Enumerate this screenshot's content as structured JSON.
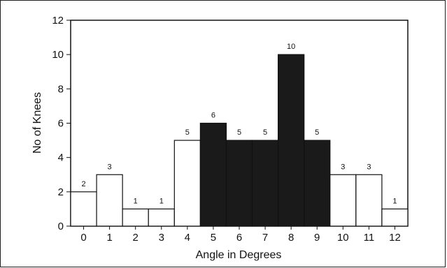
{
  "chart_data": {
    "type": "bar",
    "xlabel": "Angle in Degrees",
    "ylabel": "No of Knees",
    "categories": [
      "0",
      "1",
      "2",
      "3",
      "4",
      "5",
      "6",
      "7",
      "8",
      "9",
      "10",
      "11",
      "12"
    ],
    "values": [
      2,
      3,
      1,
      1,
      5,
      6,
      5,
      5,
      10,
      5,
      3,
      3,
      1
    ],
    "highlighted": [
      false,
      false,
      false,
      false,
      false,
      true,
      true,
      true,
      true,
      true,
      false,
      false,
      false
    ],
    "ylim": [
      0,
      12
    ],
    "yticks": [
      "0",
      "2",
      "4",
      "6",
      "8",
      "10",
      "12"
    ],
    "grid": false,
    "colors": {
      "highlight": "#1a1a1a",
      "normal": "#ffffff",
      "edge": "#111111"
    }
  }
}
